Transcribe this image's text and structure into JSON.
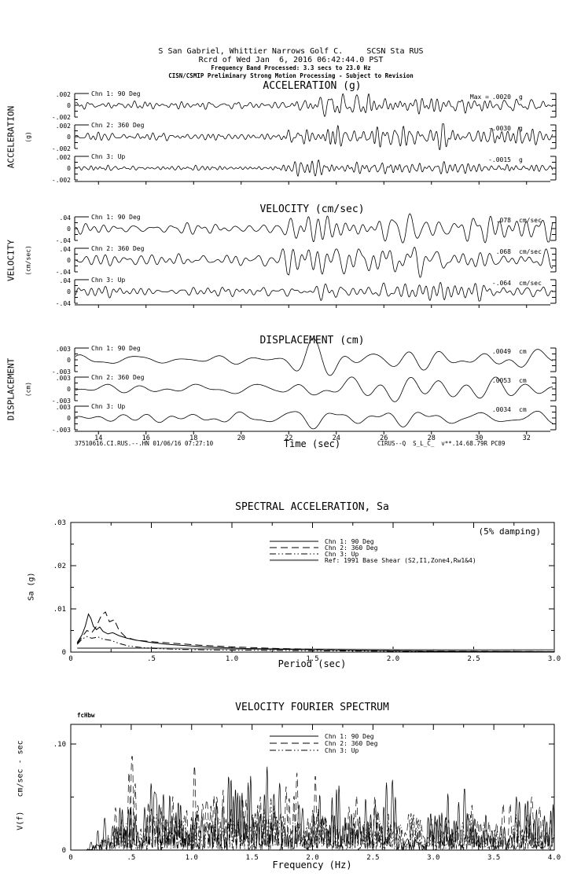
{
  "header": {
    "line1": "S San Gabriel, Whittier Narrows Golf C.     SCSN Sta RUS",
    "line2": "Rcrd of Wed Jan  6, 2016 06:42:44.0 PST",
    "line3": "Frequency Band Processed: 3.3 secs to 23.0 Hz",
    "line4": "CISN/CSMIP Preliminary Strong Motion Processing - Subject to Revision"
  },
  "footer": {
    "left": "37510616.CI.RUS.--.HN 01/06/16 07:27:10",
    "right": "CIRUS--Q  S_L_C_  v**.14.68.79R PC89"
  },
  "timeseries": {
    "x_label": "Time (sec)",
    "x_ticks": [
      "14",
      "16",
      "18",
      "20",
      "22",
      "24",
      "26",
      "28",
      "30",
      "32"
    ],
    "groups": [
      {
        "title": "ACCELERATION (g)",
        "side_label": "ACCELERATION",
        "side_unit": "(g)",
        "y_tick_top": ".002",
        "y_tick_mid": "0",
        "y_tick_bot": "-.002",
        "channels": [
          {
            "label": "Chn 1: 90 Deg",
            "max_prefix": "Max = ",
            "max_value": ".0020",
            "max_unit": "g"
          },
          {
            "label": "Chn 2: 360 Deg",
            "max_prefix": "",
            "max_value": "-.0030",
            "max_unit": "g"
          },
          {
            "label": "Chn 3: Up",
            "max_prefix": "",
            "max_value": "-.0015",
            "max_unit": "g"
          }
        ]
      },
      {
        "title": "VELOCITY (cm/sec)",
        "side_label": "VELOCITY",
        "side_unit": "(cm/sec)",
        "y_tick_top": ".04",
        "y_tick_mid": "0",
        "y_tick_bot": "-.04",
        "channels": [
          {
            "label": "Chn 1: 90 Deg",
            "max_prefix": "",
            "max_value": ".078",
            "max_unit": "cm/sec"
          },
          {
            "label": "Chn 2: 360 Deg",
            "max_prefix": "",
            "max_value": ".068",
            "max_unit": "cm/sec"
          },
          {
            "label": "Chn 3: Up",
            "max_prefix": "",
            "max_value": "-.064",
            "max_unit": "cm/sec"
          }
        ]
      },
      {
        "title": "DISPLACEMENT (cm)",
        "side_label": "DISPLACEMENT",
        "side_unit": "(cm)",
        "y_tick_top": ".003",
        "y_tick_mid": "0",
        "y_tick_bot": "-.003",
        "channels": [
          {
            "label": "Chn 1: 90 Deg",
            "max_prefix": "",
            "max_value": ".0049",
            "max_unit": "cm"
          },
          {
            "label": "Chn 2: 360 Deg",
            "max_prefix": "",
            "max_value": ".0053",
            "max_unit": "cm"
          },
          {
            "label": "Chn 3: Up",
            "max_prefix": "",
            "max_value": ".0034",
            "max_unit": "cm"
          }
        ]
      }
    ]
  },
  "sa_plot": {
    "title": "SPECTRAL ACCELERATION, Sa",
    "damping_note": "(5% damping)",
    "ylabel": "Sa (g)",
    "xlabel": "Period (sec)",
    "y_ticks": [
      ".03",
      ".02",
      ".01",
      "0"
    ],
    "x_ticks": [
      "0",
      ".5",
      "1.0",
      "1.5",
      "2.0",
      "2.5",
      "3.0"
    ],
    "legend": [
      {
        "label": "Chn 1: 90 Deg",
        "style": "solid"
      },
      {
        "label": "Chn 2: 360 Deg",
        "style": "dash"
      },
      {
        "label": "Chn 3: Up",
        "style": "dashdot"
      },
      {
        "label": "Ref: 1991 Base Shear (S2,I1,Zone4,Rw1&4)",
        "style": "ref"
      }
    ]
  },
  "fourier_plot": {
    "title": "VELOCITY FOURIER SPECTRUM",
    "corner_label": "fcHbw",
    "ylabel": "V(f)   cm/sec - sec",
    "xlabel": "Frequency (Hz)",
    "y_ticks": [
      ".10",
      "0"
    ],
    "x_ticks": [
      "0",
      ".5",
      "1.0",
      "1.5",
      "2.0",
      "2.5",
      "3.0",
      "3.5",
      "4.0"
    ],
    "legend": [
      {
        "label": "Chn 1: 90 Deg",
        "style": "solid"
      },
      {
        "label": "Chn 2: 360 Deg",
        "style": "dash"
      },
      {
        "label": "Chn 3: Up",
        "style": "dashdot"
      }
    ]
  },
  "chart_data": [
    {
      "type": "line",
      "title": "ACCELERATION (g)",
      "xlabel": "Time (sec)",
      "xlim": [
        13,
        33
      ],
      "x_ticks": [
        14,
        16,
        18,
        20,
        22,
        24,
        26,
        28,
        30,
        32
      ],
      "trace_ylim": [
        -0.002,
        0.002
      ],
      "note": "three-channel accelerogram, band-limited noise with event onset near t = 22 s",
      "series": [
        {
          "name": "Chn 1: 90 Deg",
          "peak_value": 0.002,
          "unit": "g",
          "synth": {
            "seed": 101,
            "ncomp": 16,
            "f0": 1.5,
            "f1": 5.5,
            "n": 1200,
            "base": 0.3,
            "peak": 0.75,
            "t0": 21.5
          }
        },
        {
          "name": "Chn 2: 360 Deg",
          "peak_value": -0.003,
          "unit": "g",
          "synth": {
            "seed": 202,
            "ncomp": 16,
            "f0": 1.5,
            "f1": 5.5,
            "n": 1200,
            "base": 0.3,
            "peak": 1.1,
            "t0": 21.5
          }
        },
        {
          "name": "Chn 3: Up",
          "peak_value": -0.0015,
          "unit": "g",
          "synth": {
            "seed": 303,
            "ncomp": 16,
            "f0": 2.0,
            "f1": 6.0,
            "n": 1200,
            "base": 0.2,
            "peak": 0.5,
            "t0": 21.5
          }
        }
      ]
    },
    {
      "type": "line",
      "title": "VELOCITY (cm/sec)",
      "xlabel": "Time (sec)",
      "xlim": [
        13,
        33
      ],
      "x_ticks": [
        14,
        16,
        18,
        20,
        22,
        24,
        26,
        28,
        30,
        32
      ],
      "trace_ylim": [
        -0.04,
        0.04
      ],
      "series": [
        {
          "name": "Chn 1: 90 Deg",
          "peak_value": 0.078,
          "unit": "cm/sec",
          "synth": {
            "seed": 404,
            "ncomp": 14,
            "f0": 0.8,
            "f1": 3.2,
            "n": 900,
            "base": 0.5,
            "peak": 1.2,
            "t0": 21.5
          }
        },
        {
          "name": "Chn 2: 360 Deg",
          "peak_value": 0.068,
          "unit": "cm/sec",
          "synth": {
            "seed": 505,
            "ncomp": 14,
            "f0": 0.8,
            "f1": 3.2,
            "n": 900,
            "base": 0.5,
            "peak": 1.25,
            "t0": 21.5
          }
        },
        {
          "name": "Chn 3: Up",
          "peak_value": -0.064,
          "unit": "cm/sec",
          "synth": {
            "seed": 606,
            "ncomp": 14,
            "f0": 1.0,
            "f1": 3.5,
            "n": 900,
            "base": 0.4,
            "peak": 0.5,
            "t0": 21.5
          }
        }
      ]
    },
    {
      "type": "line",
      "title": "DISPLACEMENT (cm)",
      "xlabel": "Time (sec)",
      "xlim": [
        13,
        33
      ],
      "x_ticks": [
        14,
        16,
        18,
        20,
        22,
        24,
        26,
        28,
        30,
        32
      ],
      "trace_ylim": [
        -0.003,
        0.003
      ],
      "series": [
        {
          "name": "Chn 1: 90 Deg",
          "peak_value": 0.0049,
          "unit": "cm",
          "synth": {
            "seed": 707,
            "ncomp": 12,
            "f0": 0.25,
            "f1": 1.0,
            "n": 500,
            "base": 0.55,
            "peak": 0.9,
            "t0": 21.5
          }
        },
        {
          "name": "Chn 2: 360 Deg",
          "peak_value": 0.0053,
          "unit": "cm",
          "synth": {
            "seed": 808,
            "ncomp": 12,
            "f0": 0.25,
            "f1": 1.0,
            "n": 500,
            "base": 0.5,
            "peak": 1.0,
            "t0": 21.5
          }
        },
        {
          "name": "Chn 3: Up",
          "peak_value": 0.0034,
          "unit": "cm",
          "synth": {
            "seed": 909,
            "ncomp": 12,
            "f0": 0.3,
            "f1": 1.1,
            "n": 500,
            "base": 0.45,
            "peak": 0.6,
            "t0": 21.5
          }
        }
      ]
    },
    {
      "type": "line",
      "title": "SPECTRAL ACCELERATION, Sa",
      "xlabel": "Period (sec)",
      "ylabel": "Sa (g)",
      "xlim": [
        0,
        3
      ],
      "ylim": [
        0,
        0.03
      ],
      "annotation": "(5% damping)",
      "series": [
        {
          "name": "Chn 1: 90 Deg",
          "style": "solid",
          "points": [
            [
              0.04,
              0.0022
            ],
            [
              0.07,
              0.004
            ],
            [
              0.09,
              0.006
            ],
            [
              0.11,
              0.0088
            ],
            [
              0.125,
              0.0078
            ],
            [
              0.14,
              0.006
            ],
            [
              0.16,
              0.0052
            ],
            [
              0.18,
              0.0058
            ],
            [
              0.2,
              0.0048
            ],
            [
              0.23,
              0.0042
            ],
            [
              0.26,
              0.0045
            ],
            [
              0.3,
              0.0038
            ],
            [
              0.35,
              0.0032
            ],
            [
              0.4,
              0.0028
            ],
            [
              0.5,
              0.0022
            ],
            [
              0.6,
              0.0018
            ],
            [
              0.75,
              0.0014
            ],
            [
              0.9,
              0.0011
            ],
            [
              1.1,
              0.0008
            ],
            [
              1.4,
              0.0006
            ],
            [
              1.8,
              0.0004
            ],
            [
              2.2,
              0.0002
            ],
            [
              2.6,
              0.00015
            ],
            [
              3.0,
              0.0001
            ]
          ]
        },
        {
          "name": "Chn 2: 360 Deg",
          "style": "dash",
          "points": [
            [
              0.04,
              0.002
            ],
            [
              0.07,
              0.0035
            ],
            [
              0.1,
              0.005
            ],
            [
              0.13,
              0.0045
            ],
            [
              0.16,
              0.006
            ],
            [
              0.19,
              0.0085
            ],
            [
              0.215,
              0.0093
            ],
            [
              0.24,
              0.007
            ],
            [
              0.27,
              0.0075
            ],
            [
              0.3,
              0.005
            ],
            [
              0.34,
              0.0035
            ],
            [
              0.4,
              0.0028
            ],
            [
              0.5,
              0.0024
            ],
            [
              0.65,
              0.002
            ],
            [
              0.8,
              0.0016
            ],
            [
              1.0,
              0.0012
            ],
            [
              1.3,
              0.0008
            ],
            [
              1.7,
              0.0005
            ],
            [
              2.1,
              0.0003
            ],
            [
              2.6,
              0.0002
            ],
            [
              3.0,
              0.0001
            ]
          ]
        },
        {
          "name": "Chn 3: Up",
          "style": "dashdot",
          "points": [
            [
              0.04,
              0.0018
            ],
            [
              0.07,
              0.003
            ],
            [
              0.1,
              0.0036
            ],
            [
              0.13,
              0.0032
            ],
            [
              0.17,
              0.0035
            ],
            [
              0.2,
              0.003
            ],
            [
              0.25,
              0.0027
            ],
            [
              0.3,
              0.002
            ],
            [
              0.36,
              0.0014
            ],
            [
              0.45,
              0.001
            ],
            [
              0.55,
              0.0008
            ],
            [
              0.7,
              0.0006
            ],
            [
              0.9,
              0.0005
            ],
            [
              1.2,
              0.0004
            ],
            [
              1.6,
              0.0003
            ],
            [
              2.0,
              0.0002
            ],
            [
              2.5,
              0.00015
            ],
            [
              3.0,
              0.0001
            ]
          ]
        },
        {
          "name": "Ref: 1991 Base Shear (S2,I1,Zone4,Rw1&4)",
          "style": "ref",
          "points": [
            [
              0.04,
              0.0009
            ],
            [
              0.5,
              0.0009
            ],
            [
              0.8,
              0.0008
            ],
            [
              1.2,
              0.0007
            ],
            [
              1.8,
              0.0006
            ],
            [
              2.4,
              0.0005
            ],
            [
              3.0,
              0.0005
            ]
          ]
        }
      ]
    },
    {
      "type": "line",
      "title": "VELOCITY FOURIER SPECTRUM",
      "xlabel": "Frequency (Hz)",
      "ylabel": "V(f) cm/sec - sec",
      "xlim": [
        0,
        4
      ],
      "ylim": [
        0,
        0.125
      ],
      "y_tick_values": [
        0,
        0.1
      ],
      "note": "dense noisy amplitude spectrum, energy between ~0.3 and 4 Hz, peaks near 0.09",
      "series": [
        {
          "name": "Chn 1: 90 Deg",
          "style": "solid",
          "peak": 0.09,
          "synth": {
            "seed": 21,
            "mult": 1.0
          }
        },
        {
          "name": "Chn 2: 360 Deg",
          "style": "dash",
          "peak": 0.09,
          "synth": {
            "seed": 22,
            "mult": 0.95
          }
        },
        {
          "name": "Chn 3: Up",
          "style": "dashdot",
          "peak": 0.06,
          "synth": {
            "seed": 23,
            "mult": 0.62
          }
        }
      ]
    }
  ]
}
